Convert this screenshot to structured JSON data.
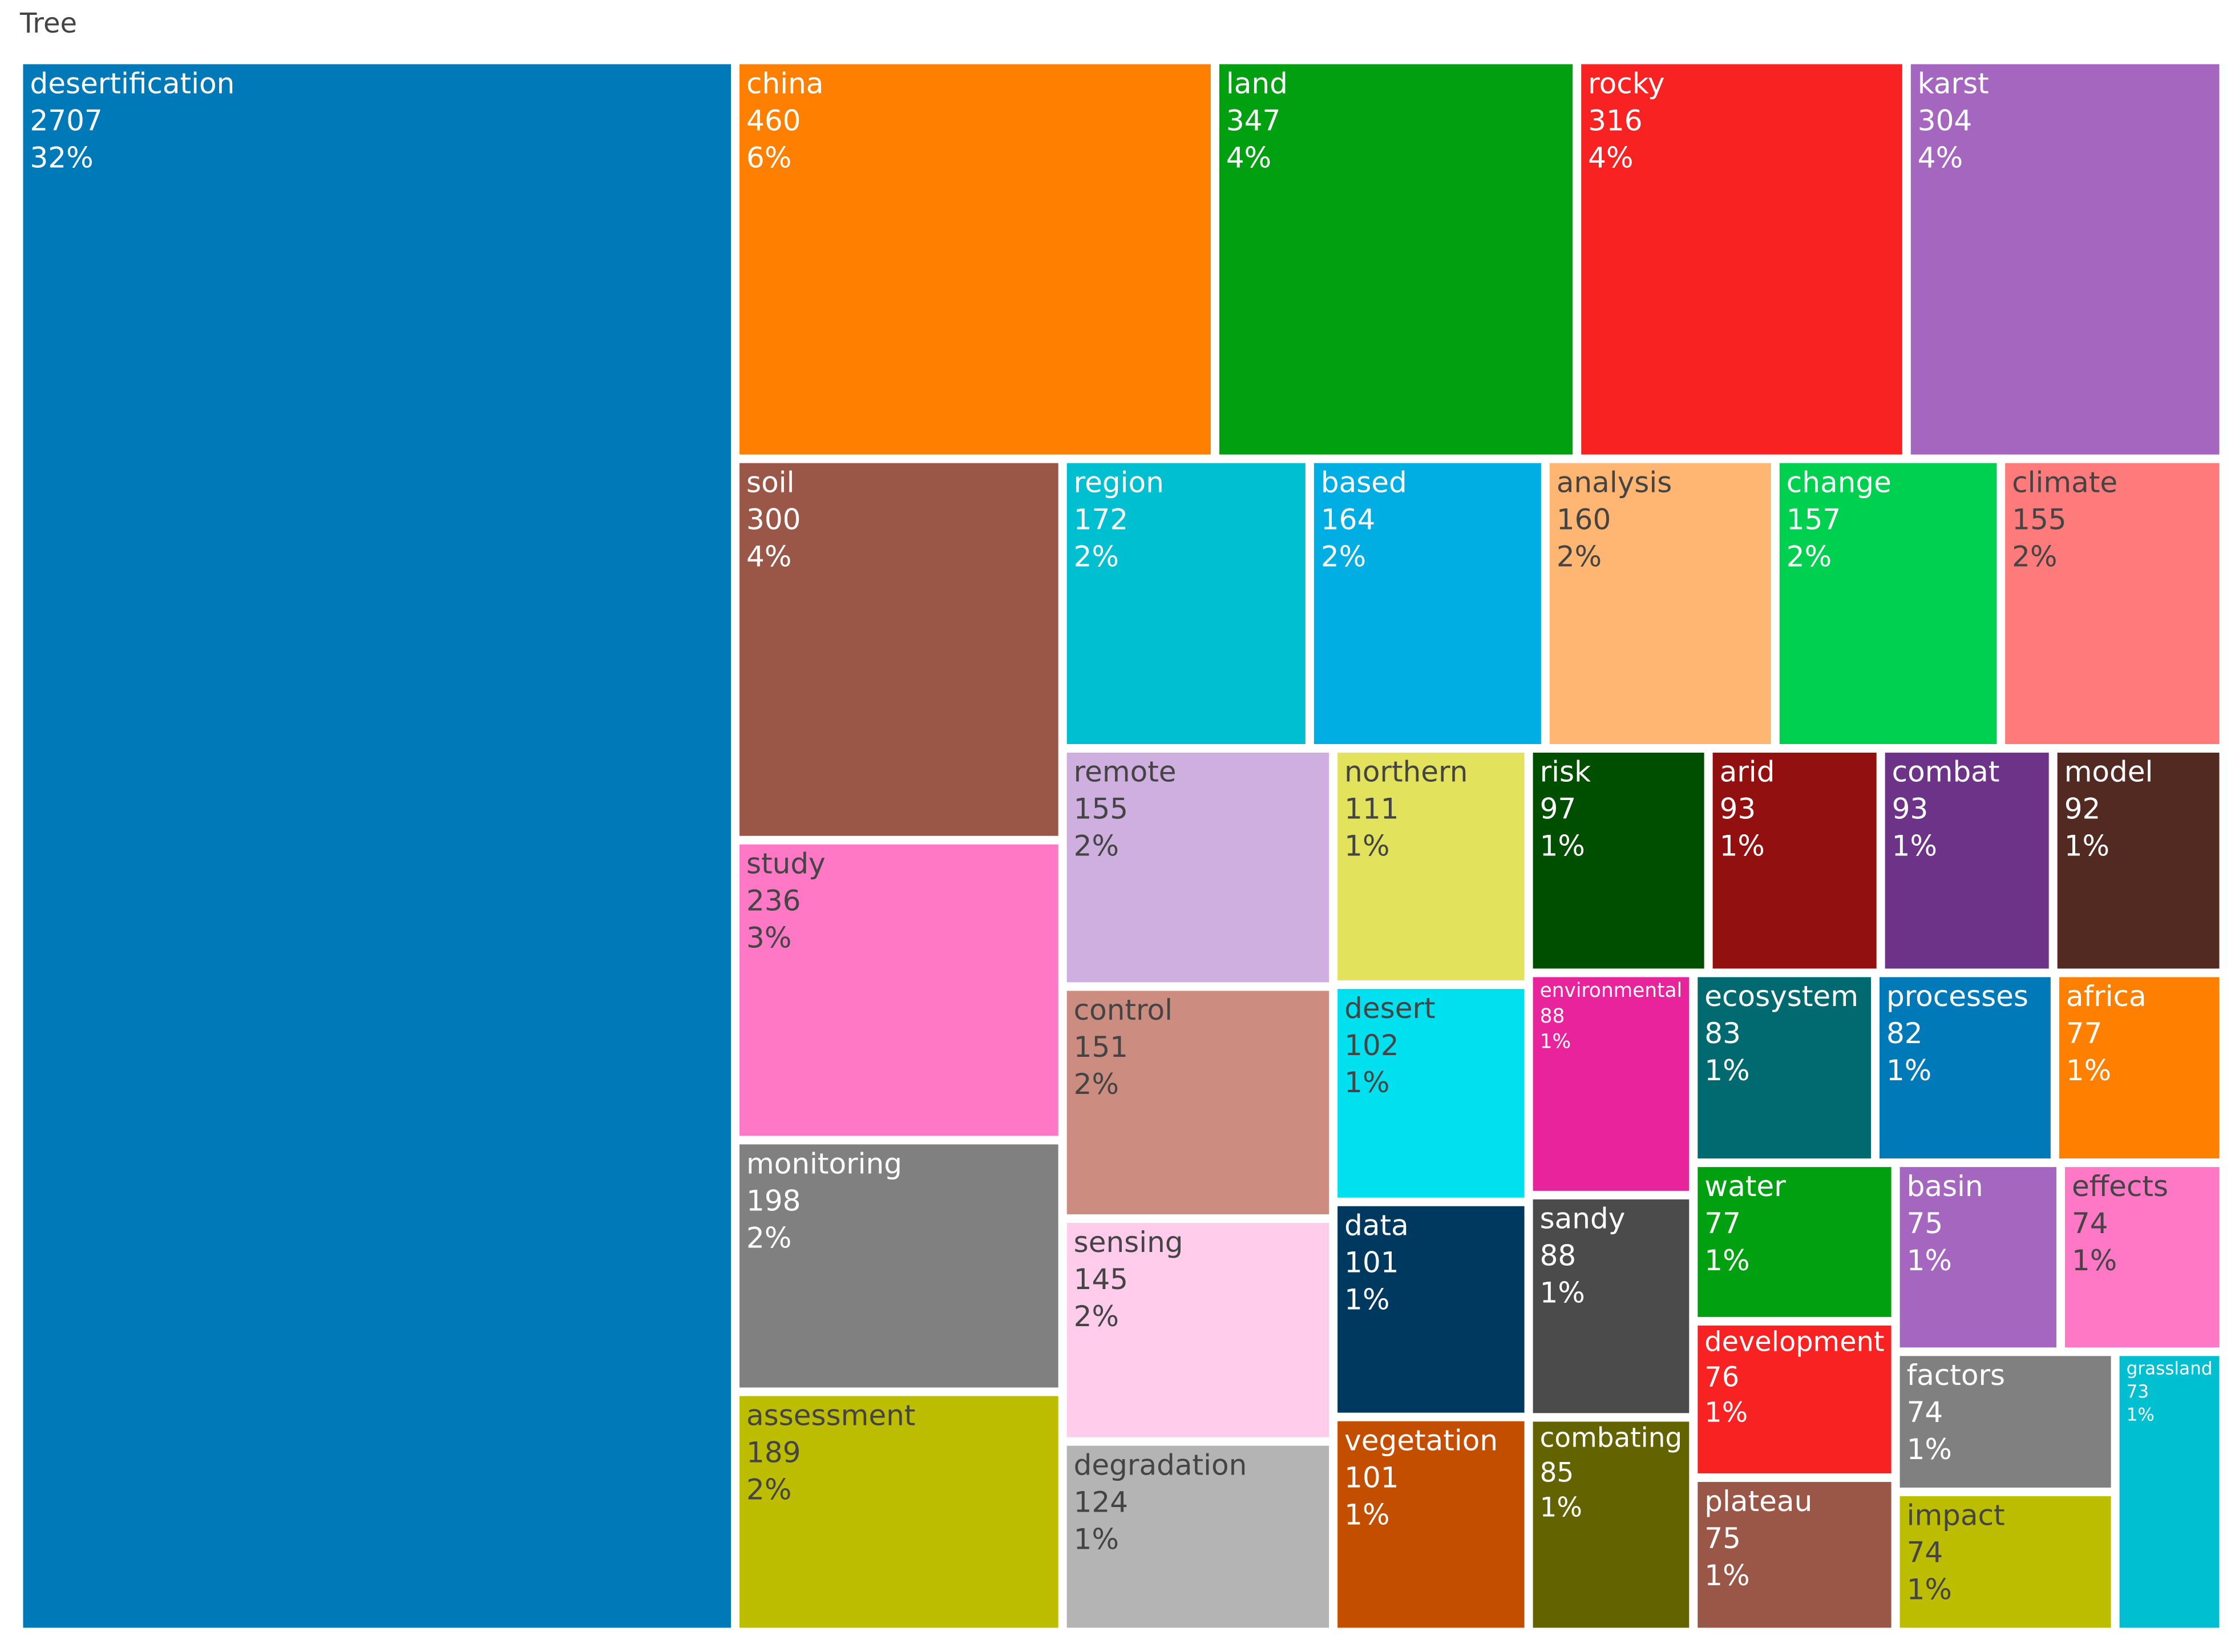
{
  "chart_data": {
    "type": "treemap",
    "title": "Tree",
    "labels": [
      "desertification",
      "china",
      "land",
      "rocky",
      "karst",
      "soil",
      "study",
      "monitoring",
      "assessment",
      "region",
      "based",
      "analysis",
      "change",
      "climate",
      "remote",
      "control",
      "sensing",
      "degradation",
      "northern",
      "desert",
      "data",
      "vegetation",
      "risk",
      "arid",
      "combat",
      "model",
      "environmental",
      "sandy",
      "combating",
      "ecosystem",
      "processes",
      "africa",
      "water",
      "development",
      "plateau",
      "basin",
      "effects",
      "factors",
      "impact",
      "grassland"
    ],
    "values": [
      2707,
      460,
      347,
      316,
      304,
      300,
      236,
      198,
      189,
      172,
      164,
      160,
      157,
      155,
      155,
      151,
      145,
      124,
      111,
      102,
      101,
      101,
      97,
      93,
      93,
      92,
      88,
      88,
      85,
      83,
      82,
      77,
      77,
      76,
      75,
      75,
      74,
      74,
      74,
      73
    ],
    "percent_labels": [
      "32%",
      "6%",
      "4%",
      "4%",
      "4%",
      "4%",
      "3%",
      "2%",
      "2%",
      "2%",
      "2%",
      "2%",
      "2%",
      "2%",
      "2%",
      "2%",
      "2%",
      "1%",
      "1%",
      "1%",
      "1%",
      "1%",
      "1%",
      "1%",
      "1%",
      "1%",
      "1%",
      "1%",
      "1%",
      "1%",
      "1%",
      "1%",
      "1%",
      "1%",
      "1%",
      "1%",
      "1%",
      "1%",
      "1%",
      "1%"
    ],
    "colors": [
      "#0079b9",
      "#ff8000",
      "#00a011",
      "#f82222",
      "#a566c0",
      "#9a5748",
      "#ff78c6",
      "#808080",
      "#bdbd00",
      "#00bfd0",
      "#00aee3",
      "#ffb673",
      "#00d050",
      "#ff7a7a",
      "#cfafe0",
      "#cd8c80",
      "#ffcceb",
      "#b4b4b4",
      "#e2e25c",
      "#00e0ee",
      "#003960",
      "#c44e00",
      "#004e00",
      "#931010",
      "#6c3389",
      "#522a22",
      "#e9239b",
      "#4b4b4b",
      "#636300",
      "#006a70",
      "#0079b9",
      "#ff8000",
      "#00a011",
      "#f82222",
      "#9a5748",
      "#a566c0",
      "#ff78c6",
      "#808080",
      "#bdbd00",
      "#00bfd0"
    ]
  }
}
